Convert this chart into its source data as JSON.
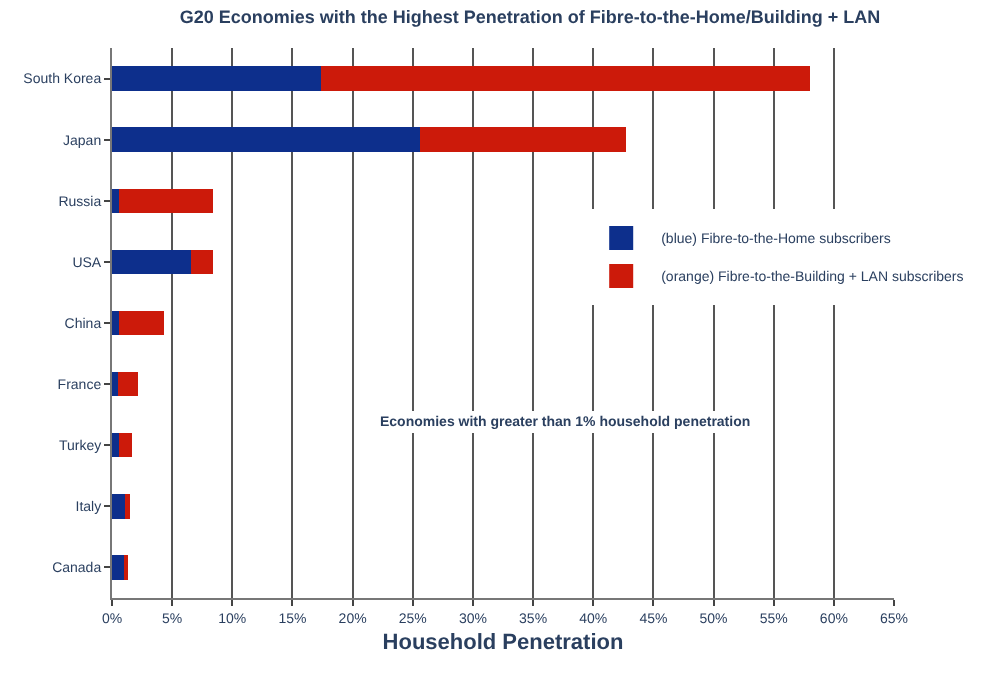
{
  "chart_data": {
    "type": "bar",
    "orientation": "horizontal",
    "stacked": true,
    "title": "G20 Economies with the Highest Penetration of Fibre-to-the-Home/Building + LAN",
    "xlabel": "Household Penetration",
    "categories": [
      "South Korea",
      "Japan",
      "Russia",
      "USA",
      "China",
      "France",
      "Turkey",
      "Italy",
      "Canada"
    ],
    "series": [
      {
        "name": "(blue) Fibre-to-the-Home subscribers",
        "color": "#0d2f8c",
        "values": [
          17.4,
          25.6,
          0.6,
          6.6,
          0.6,
          0.5,
          0.6,
          1.1,
          1.1
        ]
      },
      {
        "name": "(orange) Fibre-to-the-Building + LAN subscribers",
        "color": "#cc1a0a",
        "values": [
          40.6,
          17.1,
          7.8,
          1.8,
          3.7,
          1.7,
          1.1,
          0.4,
          0.2
        ]
      }
    ],
    "xlim": [
      0,
      65
    ],
    "xticks": [
      {
        "value": 0,
        "label": "0%"
      },
      {
        "value": 5,
        "label": "5%"
      },
      {
        "value": 10,
        "label": "10%"
      },
      {
        "value": 15,
        "label": "15%"
      },
      {
        "value": 20,
        "label": "20%"
      },
      {
        "value": 25,
        "label": "25%"
      },
      {
        "value": 30,
        "label": "30%"
      },
      {
        "value": 35,
        "label": "35%"
      },
      {
        "value": 40,
        "label": "40%"
      },
      {
        "value": 45,
        "label": "45%"
      },
      {
        "value": 50,
        "label": "50%"
      },
      {
        "value": 55,
        "label": "55%"
      },
      {
        "value": 60,
        "label": "60%"
      },
      {
        "value": 65,
        "label": "65%"
      }
    ],
    "grid": "x",
    "legend": "right",
    "annotations": [
      "Economies with greater than 1% household penetration"
    ]
  }
}
